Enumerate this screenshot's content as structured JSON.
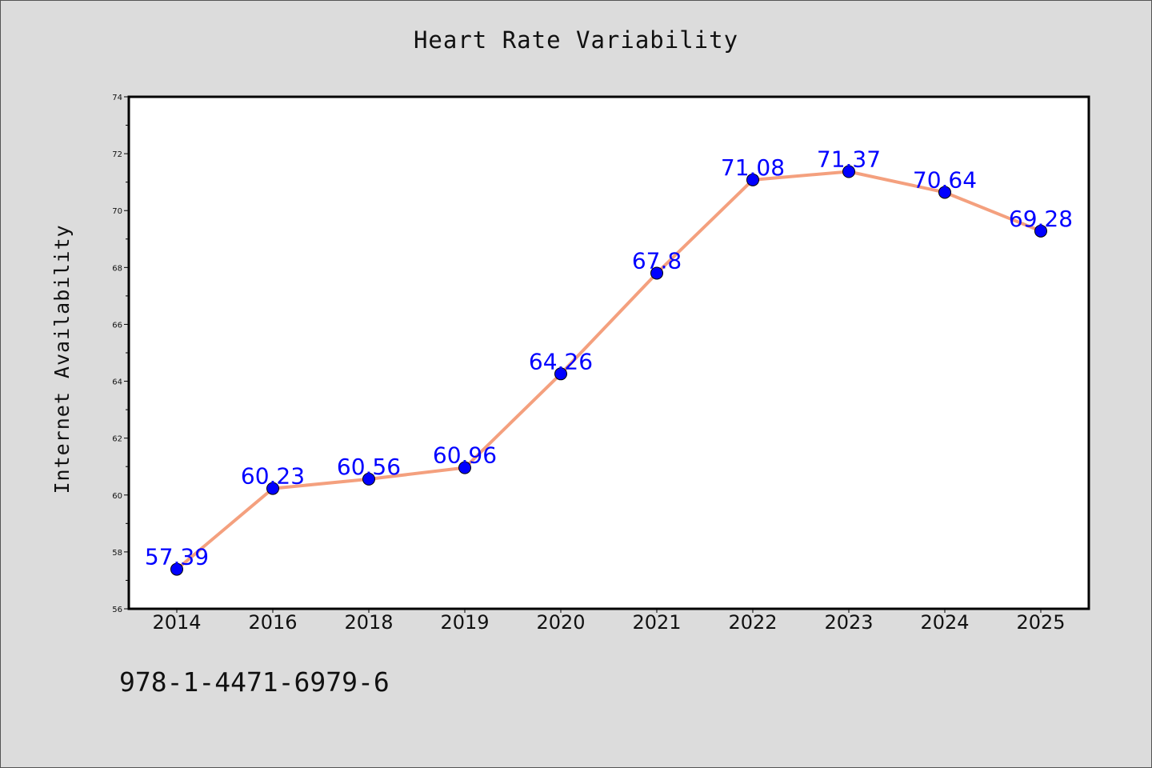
{
  "chart_data": {
    "type": "line",
    "title": "Heart Rate Variability",
    "xlabel": "",
    "ylabel": "Internet Availability",
    "categories": [
      "2014",
      "2016",
      "2018",
      "2019",
      "2020",
      "2021",
      "2022",
      "2023",
      "2024",
      "2025"
    ],
    "series": [
      {
        "values": [
          57.39,
          60.23,
          60.56,
          60.96,
          64.26,
          67.8,
          71.08,
          71.37,
          70.64,
          69.28
        ],
        "labels": [
          "57.39",
          "60.23",
          "60.56",
          "60.96",
          "64.26",
          "67.8",
          "71.08",
          "71.37",
          "70.64",
          "69.28"
        ],
        "line_color": "#f4a07e",
        "marker_color": "#0000ff"
      }
    ],
    "ylim": [
      56,
      74
    ],
    "yticks": [
      "56",
      "58",
      "60",
      "62",
      "64",
      "66",
      "68",
      "70",
      "72",
      "74"
    ],
    "grid": false,
    "legend": "none"
  },
  "footer": {
    "text": "978-1-4471-6979-6"
  },
  "colors": {
    "background": "#dcdcdc",
    "plot_background": "#ffffff"
  }
}
